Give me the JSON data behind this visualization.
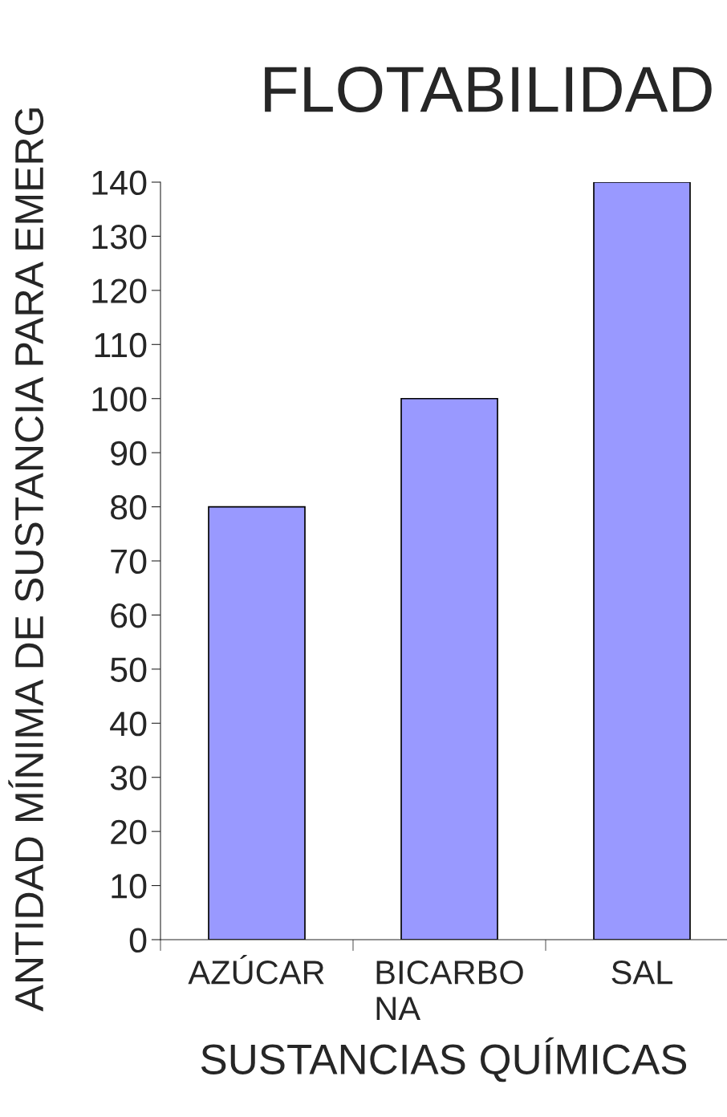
{
  "chart_data": {
    "type": "bar",
    "title": "FLOTABILIDAD",
    "xlabel": "SUSTANCIAS QUÍMICAS",
    "ylabel": "ANTIDAD MÍNIMA DE SUSTANCIA PARA EMERG",
    "categories": [
      "AZÚCAR",
      "BICARBO\nNA",
      "SAL"
    ],
    "values": [
      80,
      100,
      140
    ],
    "color": "#9999ff",
    "ylim": [
      0,
      140
    ],
    "yticks": [
      0,
      10,
      20,
      30,
      40,
      50,
      60,
      70,
      80,
      90,
      100,
      110,
      120,
      130,
      140
    ],
    "grid": false,
    "legend": false
  }
}
